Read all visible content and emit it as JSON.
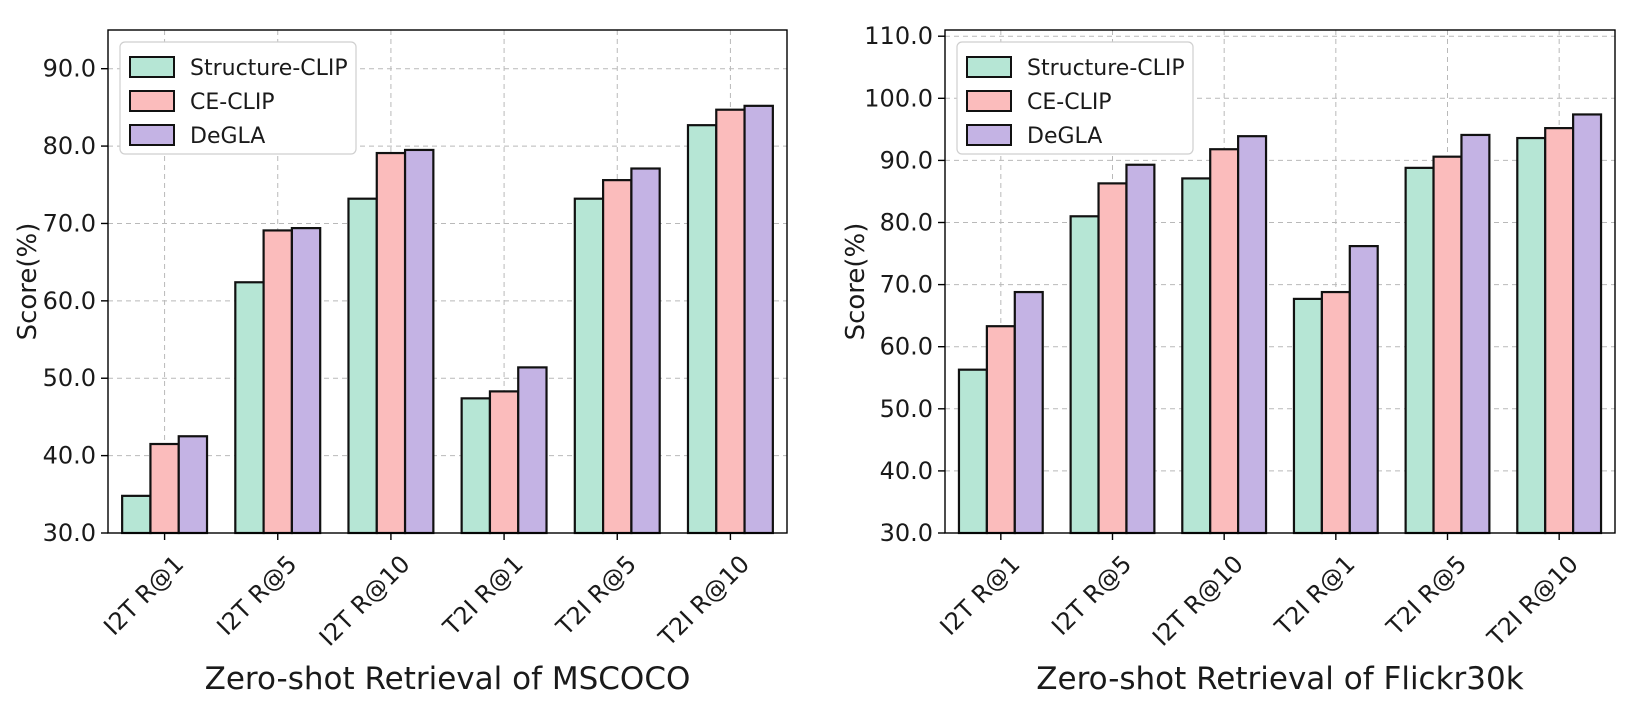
{
  "colors": {
    "Structure-CLIP": "#b6e6d5",
    "CE-CLIP": "#fbbcbc",
    "DeGLA": "#c4b3e4"
  },
  "chart_data": [
    {
      "type": "bar",
      "xlabel": "Zero-shot Retrieval of MSCOCO",
      "ylabel": "Score(%)",
      "ylim": [
        30,
        95
      ],
      "yticks": [
        "30.0",
        "40.0",
        "50.0",
        "60.0",
        "70.0",
        "80.0",
        "90.0"
      ],
      "categories": [
        "I2T R@1",
        "I2T R@5",
        "I2T R@10",
        "T2I R@1",
        "T2I R@5",
        "T2I R@10"
      ],
      "series": [
        {
          "name": "Structure-CLIP",
          "values": [
            34.8,
            62.4,
            73.2,
            47.4,
            73.2,
            82.7
          ]
        },
        {
          "name": "CE-CLIP",
          "values": [
            41.5,
            69.1,
            79.1,
            48.3,
            75.6,
            84.7
          ]
        },
        {
          "name": "DeGLA",
          "values": [
            42.5,
            69.4,
            79.5,
            51.4,
            77.1,
            85.2
          ]
        }
      ],
      "grid": true,
      "legend": "top-left"
    },
    {
      "type": "bar",
      "xlabel": "Zero-shot Retrieval of Flickr30k",
      "ylabel": "Score(%)",
      "ylim": [
        30,
        111
      ],
      "yticks": [
        "30.0",
        "40.0",
        "50.0",
        "60.0",
        "70.0",
        "80.0",
        "90.0",
        "100.0",
        "110.0"
      ],
      "categories": [
        "I2T R@1",
        "I2T R@5",
        "I2T R@10",
        "T2I R@1",
        "T2I R@5",
        "T2I R@10"
      ],
      "series": [
        {
          "name": "Structure-CLIP",
          "values": [
            56.3,
            81.0,
            87.1,
            67.7,
            88.8,
            93.6
          ]
        },
        {
          "name": "CE-CLIP",
          "values": [
            63.3,
            86.3,
            91.8,
            68.8,
            90.6,
            95.2
          ]
        },
        {
          "name": "DeGLA",
          "values": [
            68.8,
            89.3,
            93.9,
            76.2,
            94.1,
            97.4
          ]
        }
      ],
      "grid": true,
      "legend": "top-left"
    }
  ]
}
